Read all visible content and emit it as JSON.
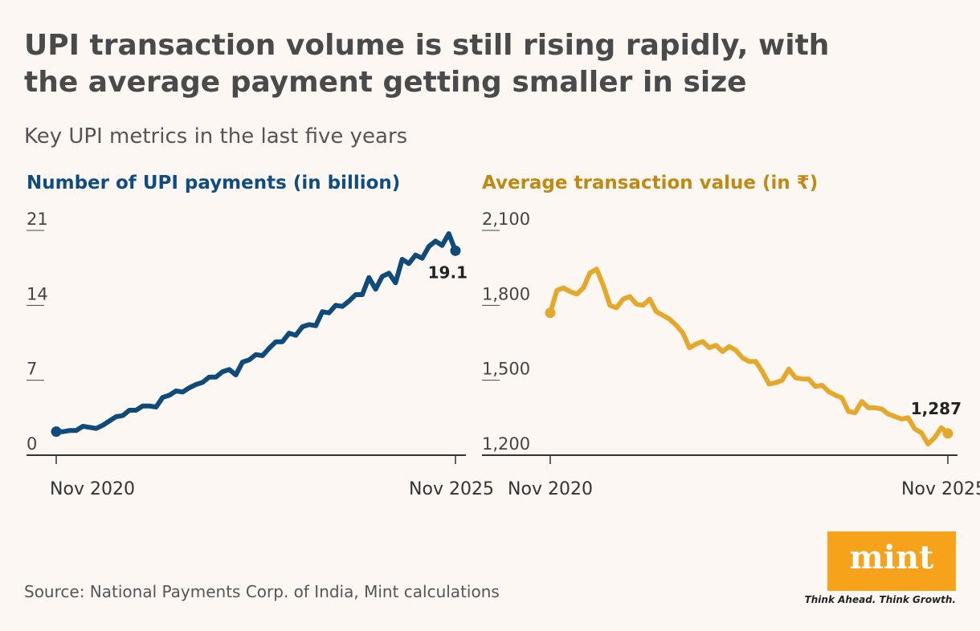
{
  "title": "UPI transaction volume is still rising rapidly, with the average payment getting smaller in size",
  "subtitle": "Key UPI metrics in the last five years",
  "source": "Source: National Payments Corp. of India, Mint calculations",
  "logo": {
    "name": "mint",
    "tagline": "Think Ahead. Think Growth."
  },
  "chart_data": [
    {
      "type": "line",
      "title": "Number of UPI payments (in billion)",
      "color": "#0e4a7a",
      "x": [
        "Nov 2020",
        "Dec 2020",
        "Jan 2021",
        "Feb 2021",
        "Mar 2021",
        "Apr 2021",
        "May 2021",
        "Jun 2021",
        "Jul 2021",
        "Aug 2021",
        "Sep 2021",
        "Oct 2021",
        "Nov 2021",
        "Dec 2021",
        "Jan 2022",
        "Feb 2022",
        "Mar 2022",
        "Apr 2022",
        "May 2022",
        "Jun 2022",
        "Jul 2022",
        "Aug 2022",
        "Sep 2022",
        "Oct 2022",
        "Nov 2022",
        "Dec 2022",
        "Jan 2023",
        "Feb 2023",
        "Mar 2023",
        "Apr 2023",
        "May 2023",
        "Jun 2023",
        "Jul 2023",
        "Aug 2023",
        "Sep 2023",
        "Oct 2023",
        "Nov 2023",
        "Dec 2023",
        "Jan 2024",
        "Feb 2024",
        "Mar 2024",
        "Apr 2024",
        "May 2024",
        "Jun 2024",
        "Jul 2024",
        "Aug 2024",
        "Sep 2024",
        "Oct 2024",
        "Nov 2024",
        "Dec 2024",
        "Jan 2025",
        "Feb 2025",
        "Mar 2025",
        "Apr 2025",
        "May 2025",
        "Jun 2025",
        "Jul 2025",
        "Aug 2025",
        "Sep 2025",
        "Oct 2025",
        "Nov 2025"
      ],
      "values": [
        2.2,
        2.2,
        2.3,
        2.3,
        2.7,
        2.6,
        2.5,
        2.8,
        3.2,
        3.6,
        3.7,
        4.2,
        4.2,
        4.6,
        4.6,
        4.5,
        5.4,
        5.6,
        6.0,
        5.9,
        6.3,
        6.6,
        6.8,
        7.3,
        7.3,
        7.8,
        8.0,
        7.5,
        8.7,
        8.9,
        9.4,
        9.3,
        10.0,
        10.6,
        10.6,
        11.4,
        11.2,
        12.0,
        12.2,
        12.1,
        13.4,
        13.3,
        14.0,
        13.9,
        14.4,
        15.0,
        15.0,
        16.6,
        15.5,
        16.7,
        17.0,
        16.1,
        18.3,
        17.9,
        18.7,
        18.4,
        19.5,
        20.0,
        19.6,
        20.7,
        19.1
      ],
      "ylim": [
        0,
        21
      ],
      "yticks": [
        0,
        7,
        14,
        21
      ]
    },
    {
      "type": "line",
      "title": "Average transaction value (in ₹)",
      "color": "#e5a82c",
      "x": [
        "Nov 2020",
        "Dec 2020",
        "Jan 2021",
        "Feb 2021",
        "Mar 2021",
        "Apr 2021",
        "May 2021",
        "Jun 2021",
        "Jul 2021",
        "Aug 2021",
        "Sep 2021",
        "Oct 2021",
        "Nov 2021",
        "Dec 2021",
        "Jan 2022",
        "Feb 2022",
        "Mar 2022",
        "Apr 2022",
        "May 2022",
        "Jun 2022",
        "Jul 2022",
        "Aug 2022",
        "Sep 2022",
        "Oct 2022",
        "Nov 2022",
        "Dec 2022",
        "Jan 2023",
        "Feb 2023",
        "Mar 2023",
        "Apr 2023",
        "May 2023",
        "Jun 2023",
        "Jul 2023",
        "Aug 2023",
        "Sep 2023",
        "Oct 2023",
        "Nov 2023",
        "Dec 2023",
        "Jan 2024",
        "Feb 2024",
        "Mar 2024",
        "Apr 2024",
        "May 2024",
        "Jun 2024",
        "Jul 2024",
        "Aug 2024",
        "Sep 2024",
        "Oct 2024",
        "Nov 2024",
        "Dec 2024",
        "Jan 2025",
        "Feb 2025",
        "Mar 2025",
        "Apr 2025",
        "May 2025",
        "Jun 2025",
        "Jul 2025",
        "Aug 2025",
        "Sep 2025",
        "Oct 2025",
        "Nov 2025"
      ],
      "values": [
        1770,
        1860,
        1870,
        1855,
        1845,
        1870,
        1930,
        1945,
        1880,
        1800,
        1790,
        1825,
        1835,
        1805,
        1800,
        1825,
        1775,
        1760,
        1745,
        1720,
        1690,
        1630,
        1645,
        1655,
        1630,
        1640,
        1615,
        1635,
        1620,
        1590,
        1575,
        1575,
        1535,
        1485,
        1490,
        1500,
        1545,
        1510,
        1505,
        1505,
        1475,
        1480,
        1455,
        1440,
        1430,
        1375,
        1370,
        1415,
        1390,
        1390,
        1385,
        1365,
        1355,
        1345,
        1350,
        1305,
        1290,
        1245,
        1270,
        1310,
        1287
      ],
      "value_labels": [
        null,
        null,
        null,
        null,
        null,
        null,
        null,
        null,
        null,
        null,
        null,
        null,
        null,
        null,
        null,
        null,
        null,
        null,
        null,
        null,
        null,
        null,
        null,
        null,
        null,
        null,
        null,
        null,
        null,
        null,
        null,
        null,
        null,
        null,
        null,
        null,
        null,
        null,
        null,
        null,
        null,
        null,
        null,
        null,
        null,
        null,
        null,
        null,
        null,
        null,
        null,
        null,
        null,
        null,
        null,
        null,
        null,
        null,
        null,
        null,
        "1,287"
      ],
      "ylim": [
        1200,
        2100
      ],
      "yticks": [
        {
          "value": 1200,
          "label": "1,200"
        },
        {
          "value": 1500,
          "label": "1,500"
        },
        {
          "value": 1800,
          "label": "1,800"
        },
        {
          "value": 2100,
          "label": "2,100"
        }
      ]
    }
  ]
}
